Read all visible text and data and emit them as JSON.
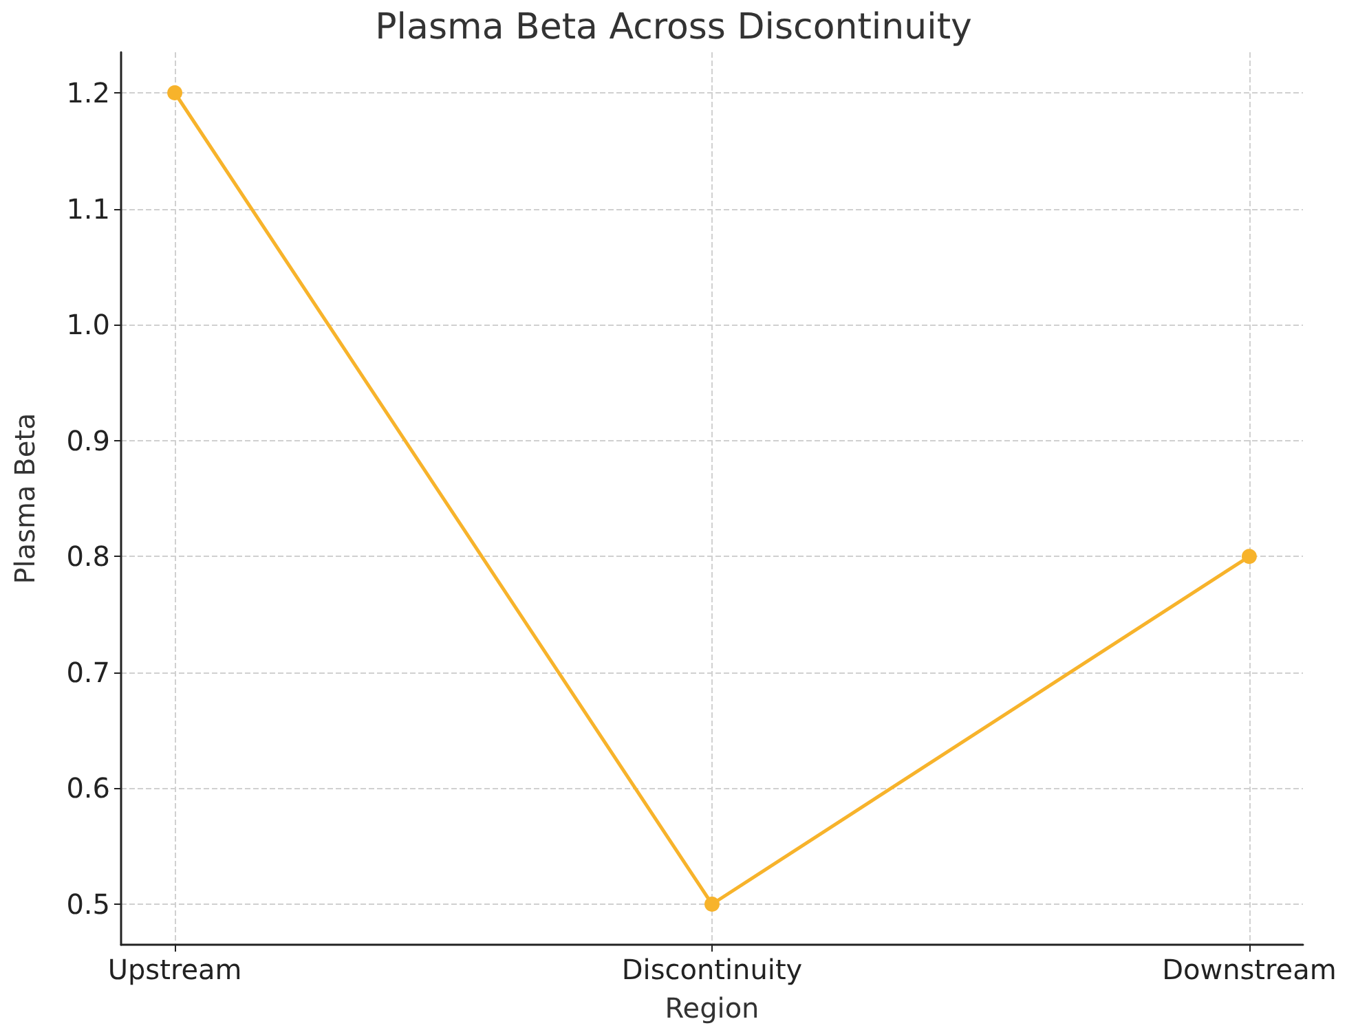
{
  "chart_data": {
    "type": "line",
    "title": "Plasma Beta Across Discontinuity",
    "xlabel": "Region",
    "ylabel": "Plasma Beta",
    "categories": [
      "Upstream",
      "Discontinuity",
      "Downstream"
    ],
    "series": [
      {
        "color": "#f7b32b",
        "values": [
          1.2,
          0.5,
          0.8
        ]
      }
    ],
    "ylim": [
      0.465,
      1.235
    ],
    "yticks": [
      0.5,
      0.6,
      0.7,
      0.8,
      0.9,
      {
        "value": 1,
        "label": "1.0"
      },
      1.1,
      1.2
    ],
    "grid": true,
    "marker": "circle",
    "line_style": "solid"
  }
}
